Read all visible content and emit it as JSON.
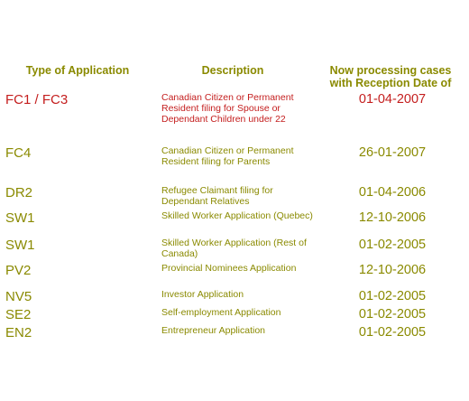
{
  "colors": {
    "olive_text": "#8a8a00",
    "red_text": "#c41e1e",
    "background": "#ffffff"
  },
  "headers": {
    "type": "Type of Application",
    "description": "Description",
    "date_line1": "Now processing cases",
    "date_line2": "with Reception Date of"
  },
  "rows": [
    {
      "code": "FC1 / FC3",
      "description": "Canadian Citizen or Permanent Resident filing for Spouse or Dependant Children under 22",
      "date": "01-04-2007"
    },
    {
      "code": "FC4",
      "description": "Canadian Citizen or Permanent Resident filing for Parents",
      "date": "26-01-2007"
    },
    {
      "code": "DR2",
      "description": "Refugee Claimant filing for Dependant Relatives",
      "date": "01-04-2006"
    },
    {
      "code": "SW1",
      "description": "Skilled Worker Application (Quebec)",
      "date": "12-10-2006"
    },
    {
      "code": "SW1",
      "description": "Skilled Worker Application (Rest of Canada)",
      "date": "01-02-2005"
    },
    {
      "code": "PV2",
      "description": "Provincial Nominees Application",
      "date": "12-10-2006"
    },
    {
      "code": "NV5",
      "description": "Investor Application",
      "date": "01-02-2005"
    },
    {
      "code": "SE2",
      "description": "Self-employment Application",
      "date": "01-02-2005"
    },
    {
      "code": "EN2",
      "description": "Entrepreneur Application",
      "date": "01-02-2005"
    }
  ]
}
